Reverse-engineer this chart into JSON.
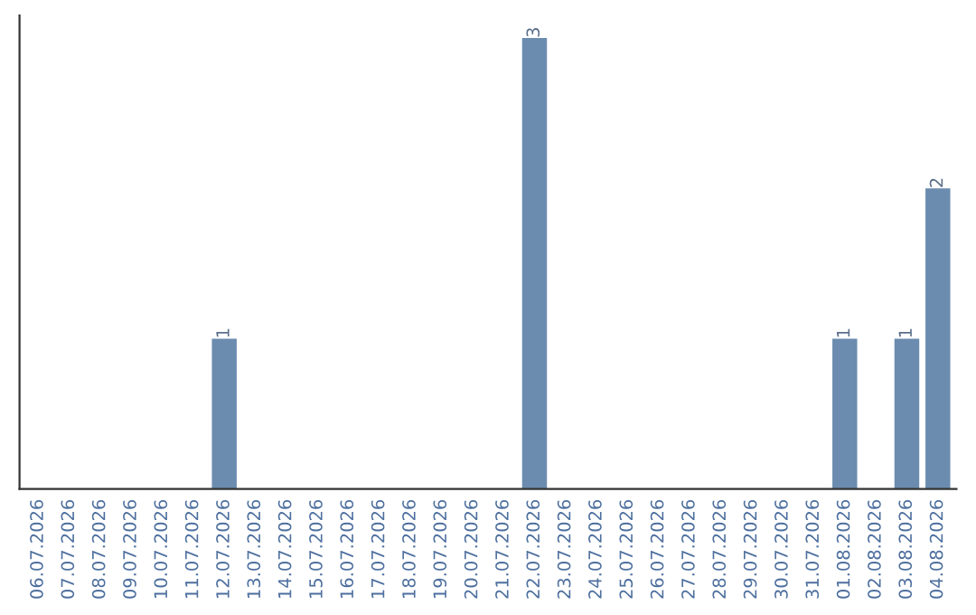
{
  "chart_data": {
    "type": "bar",
    "categories": [
      "06.07.2026",
      "07.07.2026",
      "08.07.2026",
      "09.07.2026",
      "10.07.2026",
      "11.07.2026",
      "12.07.2026",
      "13.07.2026",
      "14.07.2026",
      "15.07.2026",
      "16.07.2026",
      "17.07.2026",
      "18.07.2026",
      "19.07.2026",
      "20.07.2026",
      "21.07.2026",
      "22.07.2026",
      "23.07.2026",
      "24.07.2026",
      "25.07.2026",
      "26.07.2026",
      "27.07.2026",
      "28.07.2026",
      "29.07.2026",
      "30.07.2026",
      "31.07.2026",
      "01.08.2026",
      "02.08.2026",
      "03.08.2026",
      "04.08.2026"
    ],
    "values": [
      0,
      0,
      0,
      0,
      0,
      0,
      1,
      0,
      0,
      0,
      0,
      0,
      0,
      0,
      0,
      0,
      3,
      0,
      0,
      0,
      0,
      0,
      0,
      0,
      0,
      0,
      1,
      0,
      1,
      2
    ],
    "value_labels": [
      null,
      null,
      null,
      null,
      null,
      null,
      "1",
      null,
      null,
      null,
      null,
      null,
      null,
      null,
      null,
      null,
      "3",
      null,
      null,
      null,
      null,
      null,
      null,
      null,
      null,
      null,
      "1",
      null,
      "1",
      "2"
    ],
    "color": "#6b8caf",
    "grid": false,
    "tick_labels": "x"
  }
}
